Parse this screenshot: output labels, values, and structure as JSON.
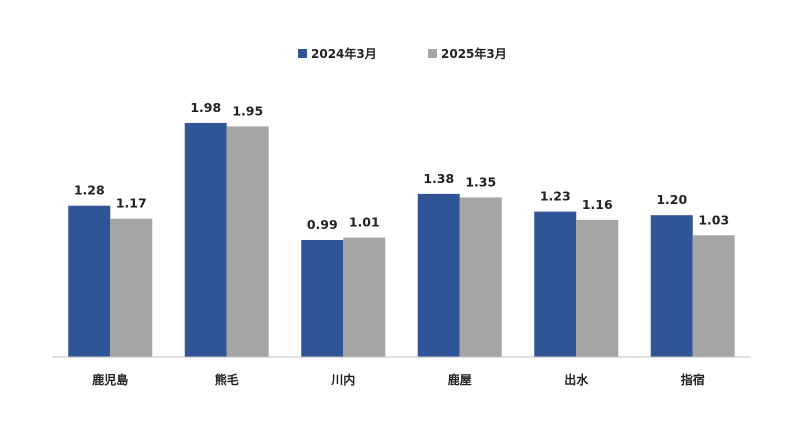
{
  "chart_data": {
    "type": "bar",
    "categories": [
      "鹿児島",
      "熊毛",
      "川内",
      "鹿屋",
      "出水",
      "指宿"
    ],
    "series": [
      {
        "name": "2024年3月",
        "color": "#2f5597",
        "values": [
          1.28,
          1.98,
          0.99,
          1.38,
          1.23,
          1.2
        ],
        "labels": [
          "1.28",
          "1.98",
          "0.99",
          "1.38",
          "1.23",
          "1.20"
        ]
      },
      {
        "name": "2025年3月",
        "color": "#a5a5a5",
        "values": [
          1.17,
          1.95,
          1.01,
          1.35,
          1.16,
          1.03
        ],
        "labels": [
          "1.17",
          "1.95",
          "1.01",
          "1.35",
          "1.16",
          "1.03"
        ]
      }
    ],
    "ylim": [
      0,
      2.2
    ],
    "grid": false,
    "legend_position": "top-center",
    "data_labels": true,
    "title": "",
    "xlabel": "",
    "ylabel": ""
  }
}
